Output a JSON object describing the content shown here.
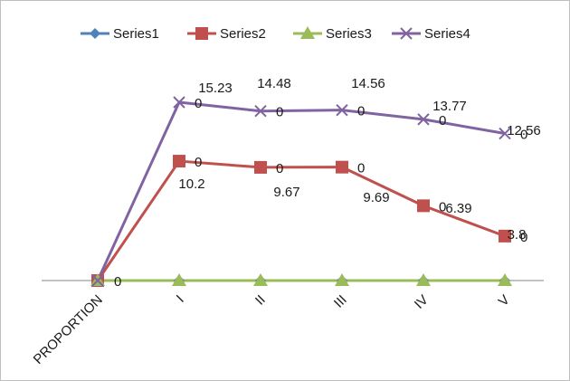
{
  "chart_data": {
    "type": "line",
    "title": "",
    "xlabel": "",
    "ylabel": "",
    "categories": [
      "PROPORTION",
      "I",
      "II",
      "III",
      "IV",
      "V"
    ],
    "ylim": [
      0,
      17
    ],
    "grid": false,
    "legend_position": "top",
    "series": [
      {
        "name": "Series1",
        "color": "#4f81bd",
        "marker": "diamond",
        "values": [
          0,
          0,
          0,
          0,
          0,
          0
        ],
        "labels": [
          "0",
          "0",
          "0",
          "0",
          "0",
          "0"
        ]
      },
      {
        "name": "Series2",
        "color": "#c0504d",
        "marker": "square",
        "values": [
          0,
          10.2,
          9.67,
          9.69,
          6.39,
          3.8
        ],
        "labels": [
          "0",
          "10.2",
          "9.67",
          "9.69",
          "6.39",
          "3.8"
        ]
      },
      {
        "name": "Series3",
        "color": "#9bbb59",
        "marker": "triangle",
        "values": [
          0,
          0,
          0,
          0,
          0,
          0
        ],
        "labels": [
          "0",
          "0",
          "0",
          "0",
          "0",
          "0"
        ]
      },
      {
        "name": "Series4",
        "color": "#8064a2",
        "marker": "x",
        "values": [
          0,
          15.23,
          14.48,
          14.56,
          13.77,
          12.56
        ],
        "labels": [
          "0",
          "15.23",
          "14.48",
          "14.56",
          "13.77",
          "12.56"
        ]
      }
    ]
  }
}
